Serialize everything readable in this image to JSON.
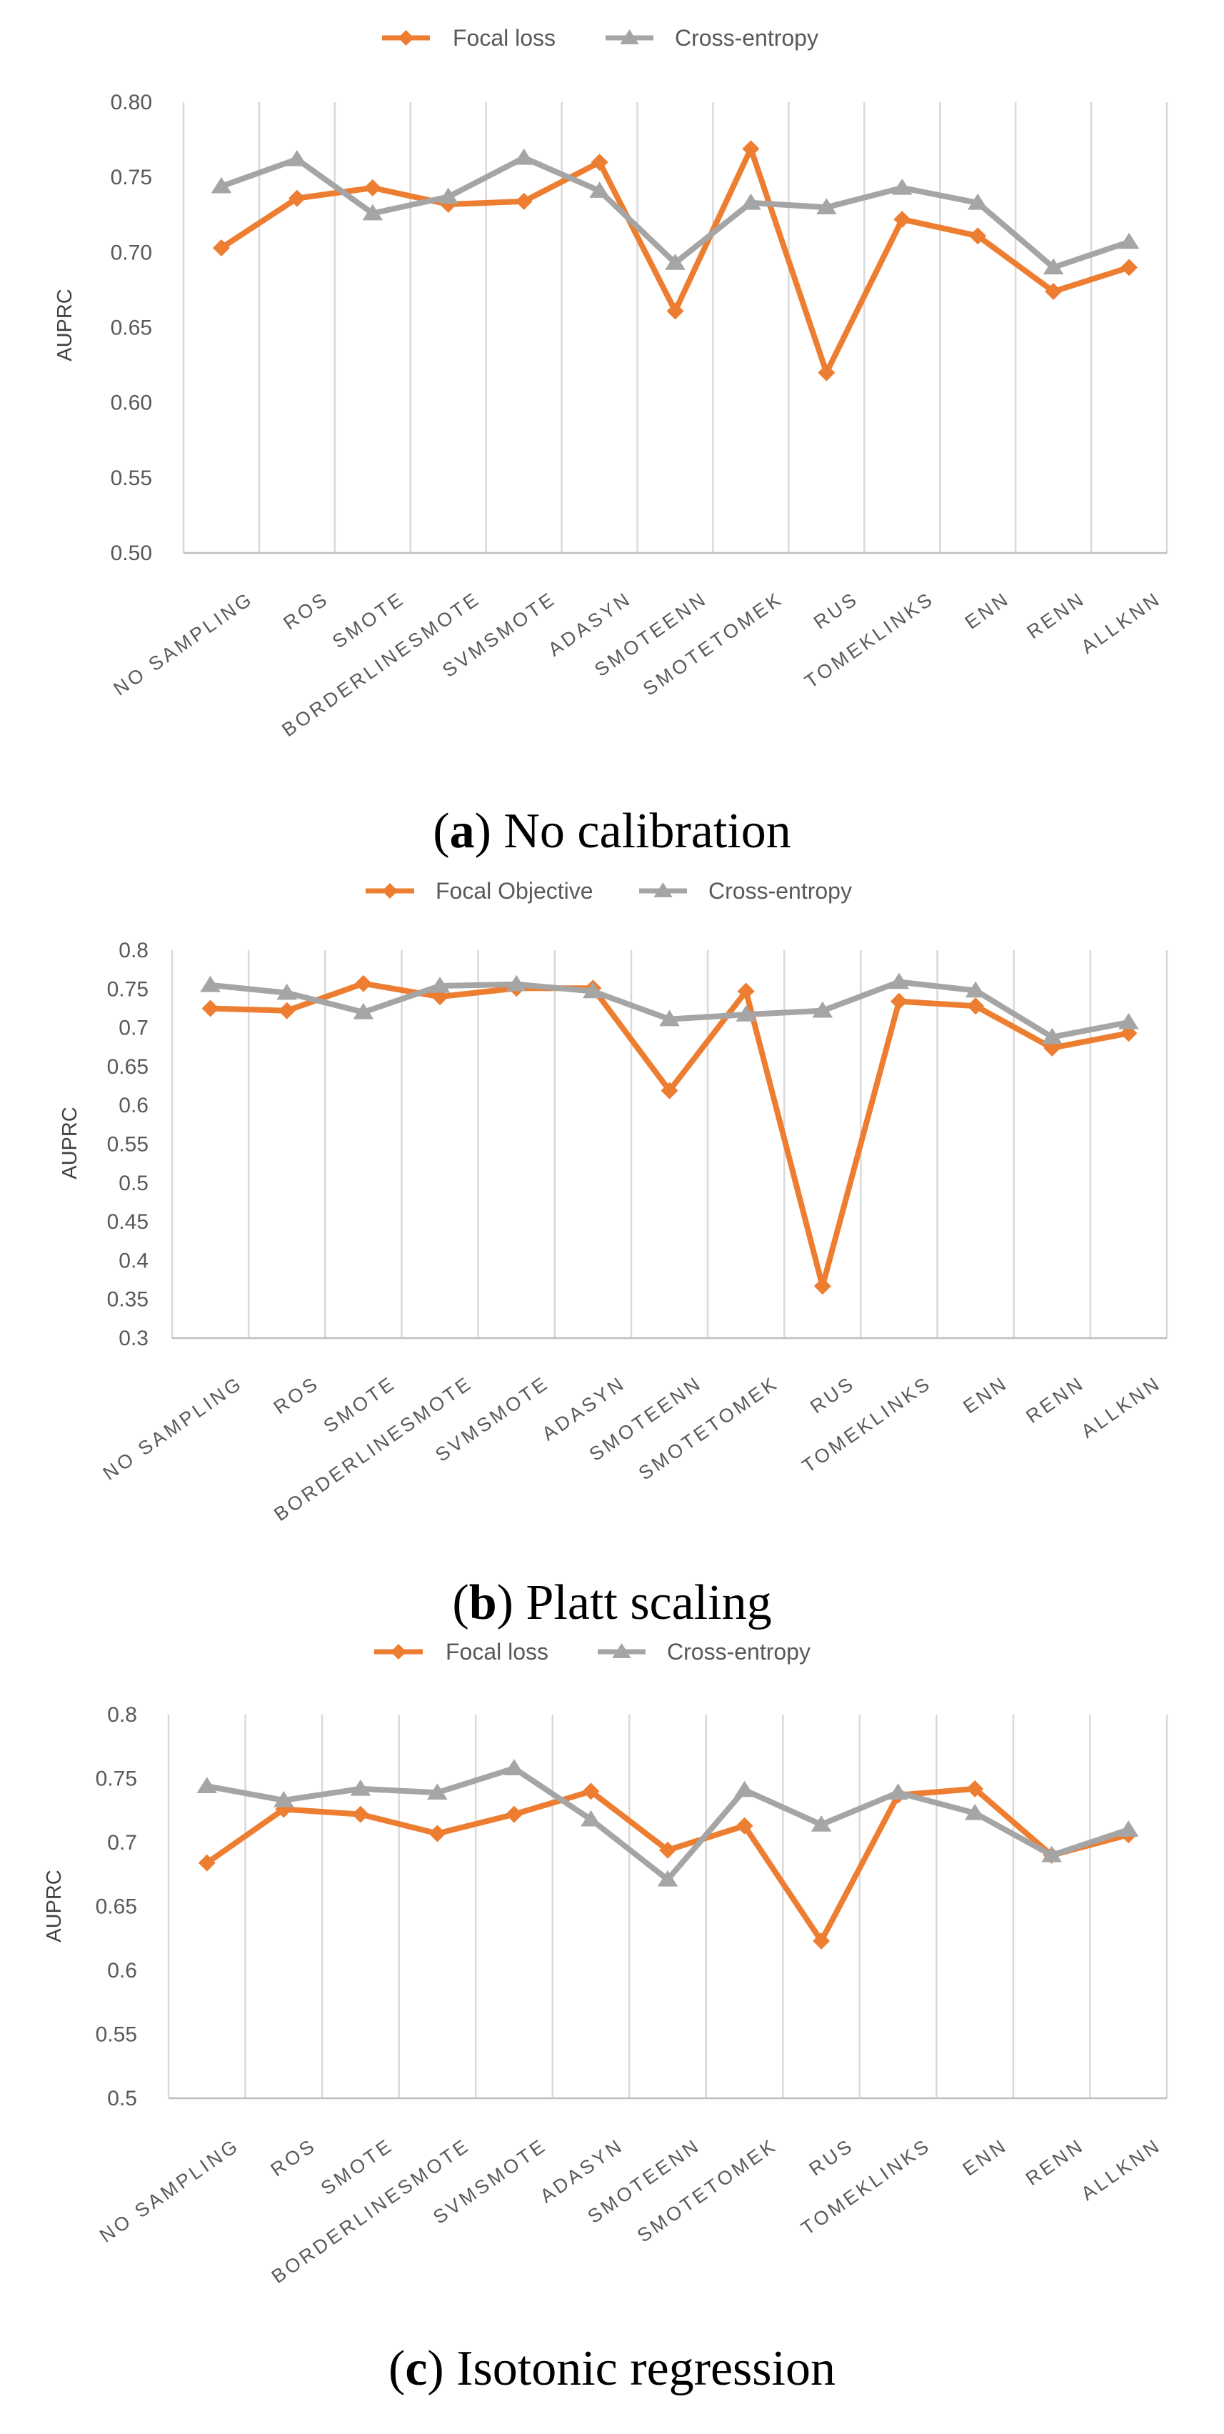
{
  "categories": [
    "NO SAMPLING",
    "ROS",
    "SMOTE",
    "BORDERLINESMOTE",
    "SVMSMOTE",
    "ADASYN",
    "SMOTEENN",
    "SMOTETOMEK",
    "RUS",
    "TOMEKLINKS",
    "ENN",
    "RENN",
    "ALLKNN"
  ],
  "colors": {
    "focal": "#ED7D31",
    "ce": "#A5A5A5",
    "grid": "#D9D9D9",
    "axis": "#BFBFBF"
  },
  "chart_data": [
    {
      "type": "line",
      "caption": {
        "open": "(",
        "letter": "a",
        "close": ")",
        "text": " No calibration"
      },
      "ylabel": "AUPRC",
      "ylim": [
        0.5,
        0.8
      ],
      "yticks": [
        "0.50",
        "0.55",
        "0.60",
        "0.65",
        "0.70",
        "0.75",
        "0.80"
      ],
      "series": [
        {
          "name": "Focal loss",
          "key": "focal",
          "marker": "diamond",
          "values": [
            0.703,
            0.736,
            0.743,
            0.732,
            0.734,
            0.76,
            0.661,
            0.769,
            0.62,
            0.722,
            0.711,
            0.674,
            0.69
          ]
        },
        {
          "name": "Cross-entropy",
          "key": "ce",
          "marker": "triangle",
          "values": [
            0.744,
            0.762,
            0.726,
            0.737,
            0.763,
            0.741,
            0.693,
            0.733,
            0.73,
            0.743,
            0.733,
            0.69,
            0.707
          ]
        }
      ]
    },
    {
      "type": "line",
      "caption": {
        "open": "(",
        "letter": "b",
        "close": ")",
        "text": " Platt scaling"
      },
      "ylabel": "AUPRC",
      "ylim": [
        0.3,
        0.8
      ],
      "yticks": [
        "0.3",
        "0.35",
        "0.4",
        "0.45",
        "0.5",
        "0.55",
        "0.6",
        "0.65",
        "0.7",
        "0.75",
        "0.8"
      ],
      "series": [
        {
          "name": "Focal Objective",
          "key": "focal",
          "marker": "diamond",
          "values": [
            0.725,
            0.722,
            0.757,
            0.74,
            0.751,
            0.751,
            0.619,
            0.747,
            0.367,
            0.734,
            0.728,
            0.674,
            0.693
          ]
        },
        {
          "name": "Cross-entropy",
          "key": "ce",
          "marker": "triangle",
          "values": [
            0.755,
            0.745,
            0.72,
            0.754,
            0.756,
            0.747,
            0.711,
            0.717,
            0.722,
            0.759,
            0.748,
            0.688,
            0.707
          ]
        }
      ]
    },
    {
      "type": "line",
      "caption": {
        "open": "(",
        "letter": "c",
        "close": ")",
        "text": " Isotonic regression"
      },
      "ylabel": "AUPRC",
      "ylim": [
        0.5,
        0.8
      ],
      "yticks": [
        "0.5",
        "0.55",
        "0.6",
        "0.65",
        "0.7",
        "0.75",
        "0.8"
      ],
      "series": [
        {
          "name": "Focal loss",
          "key": "focal",
          "marker": "diamond",
          "values": [
            0.684,
            0.726,
            0.722,
            0.707,
            0.722,
            0.74,
            0.694,
            0.713,
            0.623,
            0.737,
            0.742,
            0.69,
            0.706
          ]
        },
        {
          "name": "Cross-entropy",
          "key": "ce",
          "marker": "triangle",
          "values": [
            0.744,
            0.733,
            0.742,
            0.739,
            0.758,
            0.718,
            0.671,
            0.741,
            0.714,
            0.739,
            0.723,
            0.69,
            0.71
          ]
        }
      ]
    }
  ]
}
